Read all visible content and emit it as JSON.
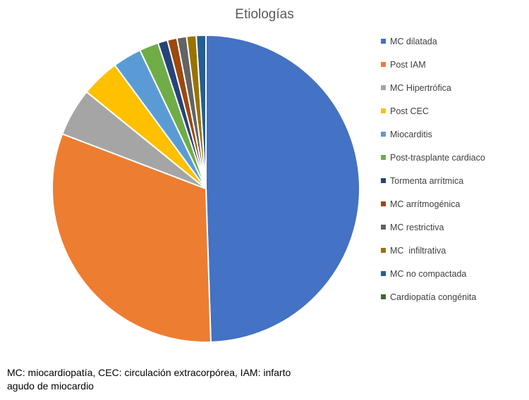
{
  "chart_data": {
    "type": "pie",
    "title": "Etiologías",
    "legend_position": "right",
    "slices": [
      {
        "label": "MC dilatada",
        "value": 49,
        "color": "#4472C4"
      },
      {
        "label": "Post IAM",
        "value": 31,
        "color": "#ED7D31"
      },
      {
        "label": "MC Hipertrófica",
        "value": 5,
        "color": "#A5A5A5"
      },
      {
        "label": "Post CEC",
        "value": 4,
        "color": "#FFC000"
      },
      {
        "label": "Miocarditis",
        "value": 3,
        "color": "#5B9BD5"
      },
      {
        "label": "Post-trasplante cardiaco",
        "value": 2,
        "color": "#70AD47"
      },
      {
        "label": "Tormenta arrítmica",
        "value": 1,
        "color": "#264478"
      },
      {
        "label": "MC arrítmogénica",
        "value": 1,
        "color": "#9E480E"
      },
      {
        "label": "MC restrictiva",
        "value": 1,
        "color": "#636363"
      },
      {
        "label": "MC  infiltrativa",
        "value": 1,
        "color": "#997300"
      },
      {
        "label": "MC no compactada",
        "value": 1,
        "color": "#255E91"
      },
      {
        "label": "Cardiopatía congénita",
        "value": 0,
        "color": "#43682B"
      }
    ]
  },
  "footnote": "MC: miocardiopatía, CEC: circulación extracorpórea, IAM: infarto agudo de miocardio"
}
